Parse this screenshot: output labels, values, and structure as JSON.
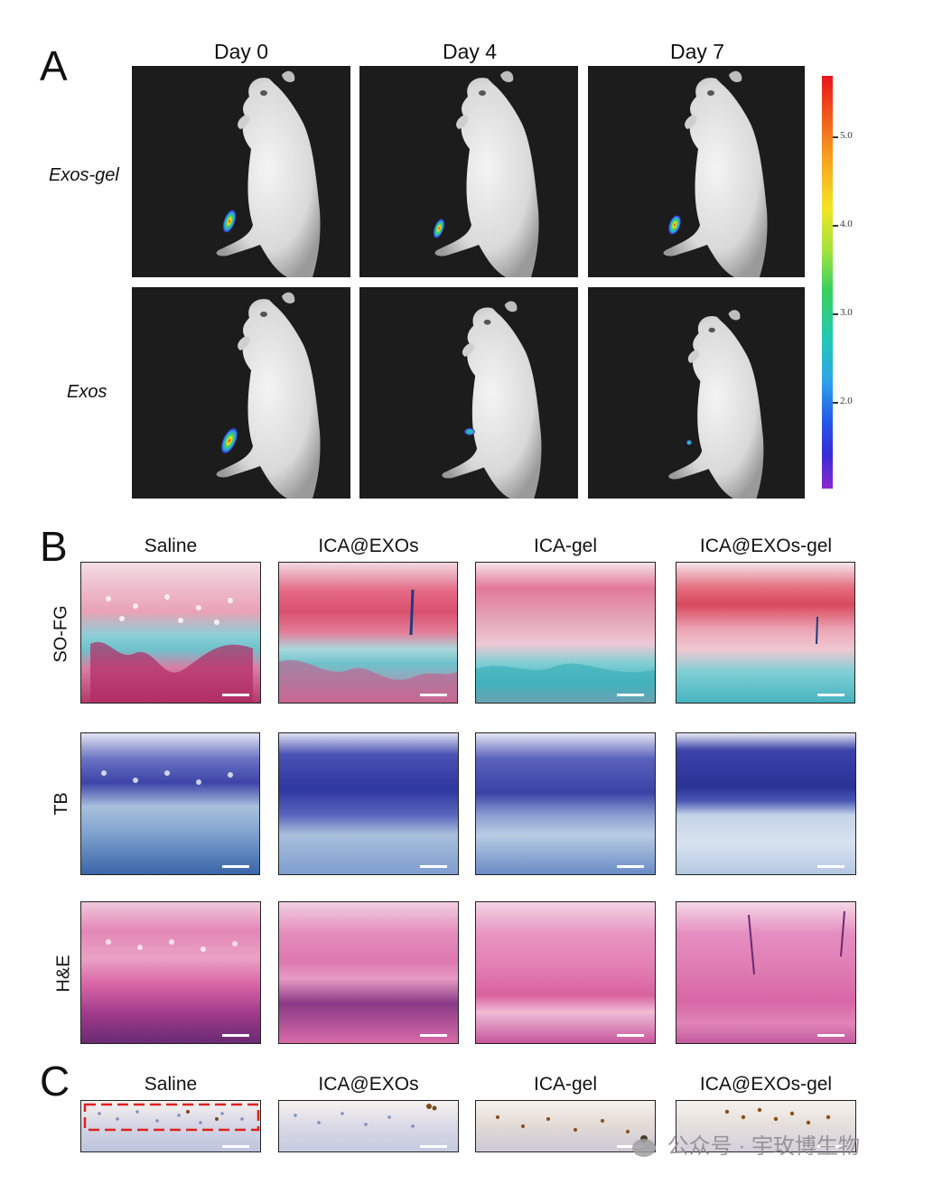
{
  "panelA": {
    "letter": "A",
    "columns": [
      "Day 0",
      "Day 4",
      "Day 7"
    ],
    "rows": [
      "Exos-gel",
      "Exos"
    ],
    "colorbar": {
      "ticks": [
        "5.0",
        "4.0",
        "3.0",
        "2.0"
      ],
      "colors": [
        "#e8141c",
        "#f8a21e",
        "#f2e428",
        "#38d05e",
        "#2ca4ea",
        "#2456e8",
        "#8a2ad0"
      ]
    }
  },
  "panelB": {
    "letter": "B",
    "columns": [
      "Saline",
      "ICA@EXOs",
      "ICA-gel",
      "ICA@EXOs-gel"
    ],
    "rows": [
      "SO-FG",
      "TB",
      "H&E"
    ]
  },
  "panelC": {
    "letter": "C",
    "columns": [
      "Saline",
      "ICA@EXOs",
      "ICA-gel",
      "ICA@EXOs-gel"
    ]
  },
  "watermark": {
    "text": "公众号 · 宇玫博生物"
  }
}
